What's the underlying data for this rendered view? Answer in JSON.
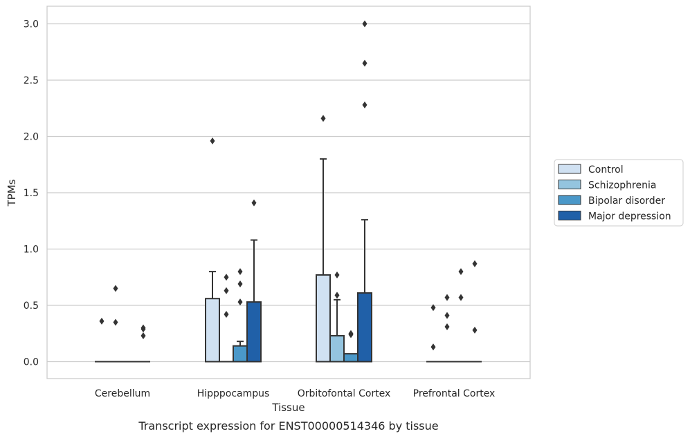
{
  "caption": "Transcript expression for ENST00000514346 by tissue",
  "chart_data": {
    "type": "box",
    "xlabel": "Tissue",
    "ylabel": "TPMs",
    "ylim": [
      -0.15,
      3.15
    ],
    "yticks": [
      "0.0",
      "0.5",
      "1.0",
      "1.5",
      "2.0",
      "2.5",
      "3.0"
    ],
    "grid": true,
    "legend_position": "right",
    "categories": [
      "Cerebellum",
      "Hipppocampus",
      "Orbitofontal Cortex",
      "Prefrontal Cortex"
    ],
    "series": [
      {
        "name": "Control",
        "color": "#d0e1f2",
        "boxes": [
          {
            "q1": 0,
            "median": 0,
            "q3": 0,
            "whisker_low": 0,
            "whisker_high": 0,
            "outliers": [
              0.36
            ]
          },
          {
            "q1": 0,
            "median": 0,
            "q3": 0.56,
            "whisker_low": 0,
            "whisker_high": 0.8,
            "outliers": [
              1.96
            ]
          },
          {
            "q1": 0,
            "median": 0,
            "q3": 0.77,
            "whisker_low": 0,
            "whisker_high": 1.8,
            "outliers": [
              2.16
            ]
          },
          {
            "q1": 0,
            "median": 0,
            "q3": 0,
            "whisker_low": 0,
            "whisker_high": 0,
            "outliers": [
              0.13,
              0.48
            ]
          }
        ]
      },
      {
        "name": "Schizophrenia",
        "color": "#94c4df",
        "boxes": [
          {
            "q1": 0,
            "median": 0,
            "q3": 0,
            "whisker_low": 0,
            "whisker_high": 0,
            "outliers": [
              0.35,
              0.65
            ]
          },
          {
            "q1": 0,
            "median": 0,
            "q3": 0,
            "whisker_low": 0,
            "whisker_high": 0,
            "outliers": [
              0.42,
              0.63,
              0.75
            ]
          },
          {
            "q1": 0,
            "median": 0,
            "q3": 0.23,
            "whisker_low": 0,
            "whisker_high": 0.55,
            "outliers": [
              0.59,
              0.77
            ]
          },
          {
            "q1": 0,
            "median": 0,
            "q3": 0,
            "whisker_low": 0,
            "whisker_high": 0,
            "outliers": [
              0.31,
              0.41,
              0.57
            ]
          }
        ]
      },
      {
        "name": "Bipolar disorder",
        "color": "#4a98c9",
        "boxes": [
          {
            "q1": 0,
            "median": 0,
            "q3": 0,
            "whisker_low": 0,
            "whisker_high": 0,
            "outliers": []
          },
          {
            "q1": 0,
            "median": 0,
            "q3": 0.14,
            "whisker_low": 0,
            "whisker_high": 0.18,
            "outliers": [
              0.53,
              0.69,
              0.8
            ]
          },
          {
            "q1": 0,
            "median": 0,
            "q3": 0.07,
            "whisker_low": 0,
            "whisker_high": 0.07,
            "outliers": [
              0.24,
              0.25
            ]
          },
          {
            "q1": 0,
            "median": 0,
            "q3": 0,
            "whisker_low": 0,
            "whisker_high": 0,
            "outliers": [
              0.57,
              0.8
            ]
          }
        ]
      },
      {
        "name": "Major depression",
        "color": "#2060a8",
        "boxes": [
          {
            "q1": 0,
            "median": 0,
            "q3": 0,
            "whisker_low": 0,
            "whisker_high": 0,
            "outliers": [
              0.23,
              0.29,
              0.3
            ]
          },
          {
            "q1": 0,
            "median": 0,
            "q3": 0.53,
            "whisker_low": 0,
            "whisker_high": 1.08,
            "outliers": [
              1.41
            ]
          },
          {
            "q1": 0,
            "median": 0,
            "q3": 0.61,
            "whisker_low": 0,
            "whisker_high": 1.26,
            "outliers": [
              2.28,
              2.65,
              3.0
            ]
          },
          {
            "q1": 0,
            "median": 0,
            "q3": 0,
            "whisker_low": 0,
            "whisker_high": 0,
            "outliers": [
              0.28,
              0.87
            ]
          }
        ]
      }
    ]
  }
}
